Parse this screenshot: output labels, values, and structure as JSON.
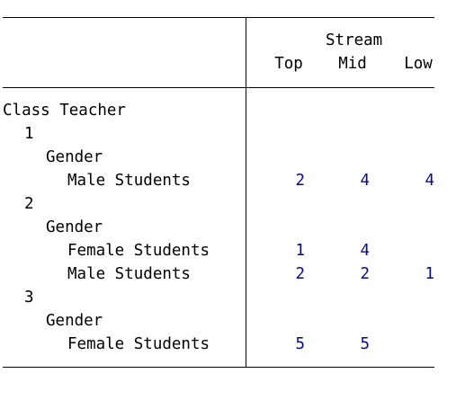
{
  "table": {
    "column_group_label": "Stream",
    "columns": [
      "Top",
      "Mid",
      "Low"
    ],
    "row_header": "Class Teacher",
    "groups": [
      {
        "teacher": "1",
        "subheader": "Gender",
        "rows": [
          {
            "label": "Male Students",
            "values": [
              "2",
              "4",
              "4"
            ]
          }
        ]
      },
      {
        "teacher": "2",
        "subheader": "Gender",
        "rows": [
          {
            "label": "Female Students",
            "values": [
              "1",
              "4",
              ""
            ]
          },
          {
            "label": "Male Students",
            "values": [
              "2",
              "2",
              "1"
            ]
          }
        ]
      },
      {
        "teacher": "3",
        "subheader": "Gender",
        "rows": [
          {
            "label": "Female Students",
            "values": [
              "5",
              "5",
              ""
            ]
          }
        ]
      }
    ]
  },
  "colors": {
    "values": "#0b0b80",
    "lines": "#000000",
    "text": "#000000"
  }
}
